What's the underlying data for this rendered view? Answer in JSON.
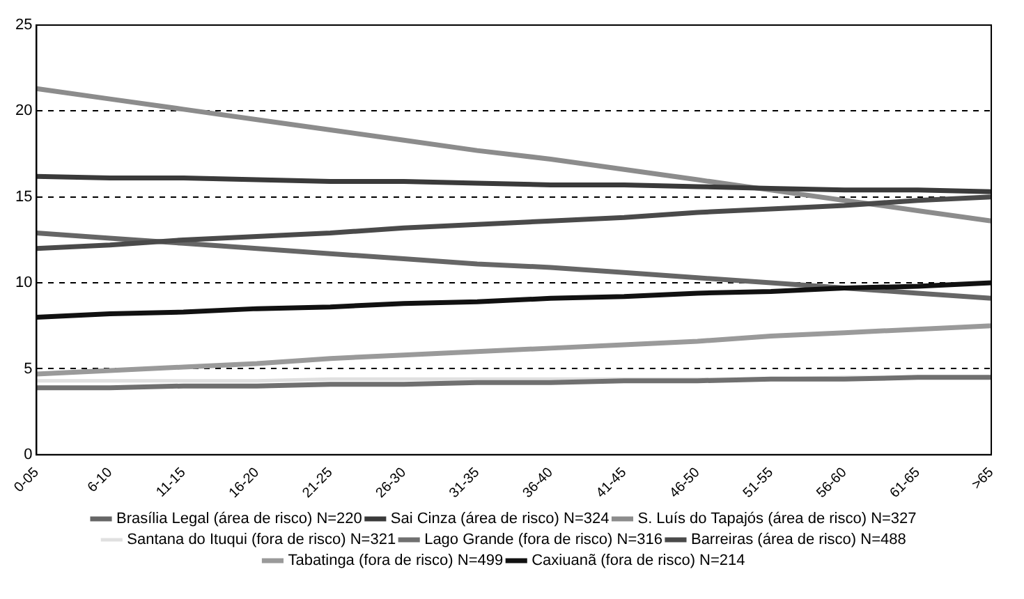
{
  "chart_data": {
    "type": "line",
    "categories": [
      "0-05",
      "6-10",
      "11-15",
      "16-20",
      "21-25",
      "26-30",
      "31-35",
      "36-40",
      "41-45",
      "46-50",
      "51-55",
      "56-60",
      "61-65",
      ">65"
    ],
    "ylim": [
      0,
      25
    ],
    "yticks": [
      0,
      5,
      10,
      15,
      20,
      25
    ],
    "grid": "y",
    "legend": "bottom",
    "marker": "none",
    "series": [
      {
        "name": "Brasília Legal (área de risco) N=220",
        "color": "#666666",
        "values": [
          12.9,
          12.6,
          12.3,
          12.0,
          11.7,
          11.4,
          11.1,
          10.9,
          10.6,
          10.3,
          10.0,
          9.7,
          9.4,
          9.1
        ]
      },
      {
        "name": "Sai Cinza (área de risco) N=324",
        "color": "#3a3a3a",
        "values": [
          16.2,
          16.1,
          16.1,
          16.0,
          15.9,
          15.9,
          15.8,
          15.7,
          15.7,
          15.6,
          15.5,
          15.4,
          15.4,
          15.3
        ]
      },
      {
        "name": "S. Luís do Tapajós (área de risco) N=327",
        "color": "#8c8c8c",
        "values": [
          21.3,
          20.7,
          20.1,
          19.5,
          18.9,
          18.3,
          17.7,
          17.2,
          16.6,
          16.0,
          15.4,
          14.8,
          14.2,
          13.6
        ]
      },
      {
        "name": "Santana do Ituqui (fora de risco) N=321",
        "color": "#e0e0e0",
        "values": [
          4.3,
          4.3,
          4.3,
          4.3,
          4.4,
          4.4,
          4.4,
          4.4,
          4.4,
          4.4,
          4.4,
          4.5,
          4.5,
          4.5
        ]
      },
      {
        "name": "Lago Grande (fora de risco) N=316",
        "color": "#707070",
        "values": [
          3.9,
          3.9,
          4.0,
          4.0,
          4.1,
          4.1,
          4.2,
          4.2,
          4.3,
          4.3,
          4.4,
          4.4,
          4.5,
          4.5
        ]
      },
      {
        "name": "Barreiras (área de risco) N=488",
        "color": "#4a4a4a",
        "values": [
          12.0,
          12.2,
          12.5,
          12.7,
          12.9,
          13.2,
          13.4,
          13.6,
          13.8,
          14.1,
          14.3,
          14.5,
          14.8,
          15.0
        ]
      },
      {
        "name": "Tabatinga (fora de risco) N=499",
        "color": "#9a9a9a",
        "values": [
          4.7,
          4.9,
          5.1,
          5.3,
          5.6,
          5.8,
          6.0,
          6.2,
          6.4,
          6.6,
          6.9,
          7.1,
          7.3,
          7.5
        ]
      },
      {
        "name": "Caxiuanã (fora de risco) N=214",
        "color": "#111111",
        "values": [
          8.0,
          8.2,
          8.3,
          8.5,
          8.6,
          8.8,
          8.9,
          9.1,
          9.2,
          9.4,
          9.5,
          9.7,
          9.8,
          10.0
        ]
      }
    ]
  }
}
